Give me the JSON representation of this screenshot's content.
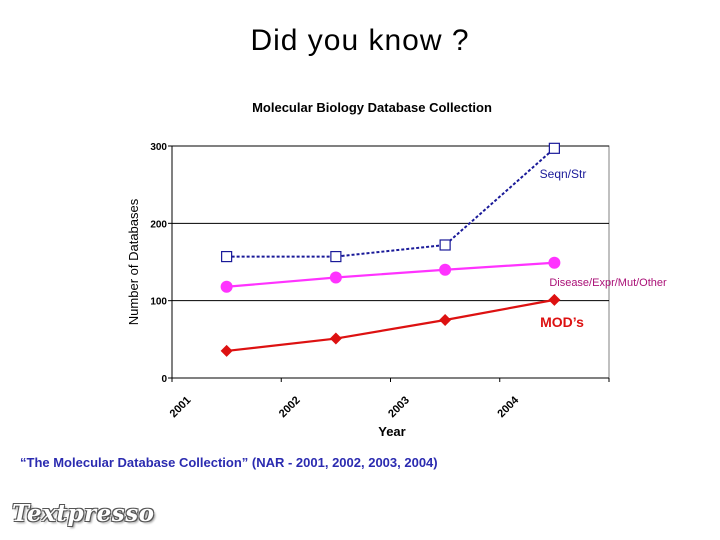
{
  "slide": {
    "title": "Did you know ?",
    "caption": "“The Molecular Database Collection” (NAR - 2001, 2002, 2003, 2004)",
    "logo": "Textpresso"
  },
  "chart_data": {
    "type": "line",
    "title": "Molecular Biology Database Collection",
    "xlabel": "Year",
    "ylabel": "Number of Databases",
    "categories": [
      "2001",
      "2002",
      "2003",
      "2004"
    ],
    "ylim": [
      0,
      300
    ],
    "yticks": [
      "0",
      "100",
      "200",
      "300"
    ],
    "grid": true,
    "series": [
      {
        "name": "Seqn/Str",
        "values": [
          157,
          157,
          172,
          297
        ],
        "color": "#1a1a99",
        "marker": "open-square",
        "line": "dotted",
        "label_color": "#1a1a99"
      },
      {
        "name": "Disease/Expr/Mut/Other",
        "values": [
          118,
          130,
          140,
          149
        ],
        "color": "#ff33ff",
        "marker": "circle",
        "line": "solid",
        "label_color": "#aa1177"
      },
      {
        "name": "MOD’s",
        "values": [
          35,
          51,
          75,
          101
        ],
        "color": "#dd1111",
        "marker": "diamond",
        "line": "solid",
        "label_color": "#dd1111"
      }
    ]
  }
}
